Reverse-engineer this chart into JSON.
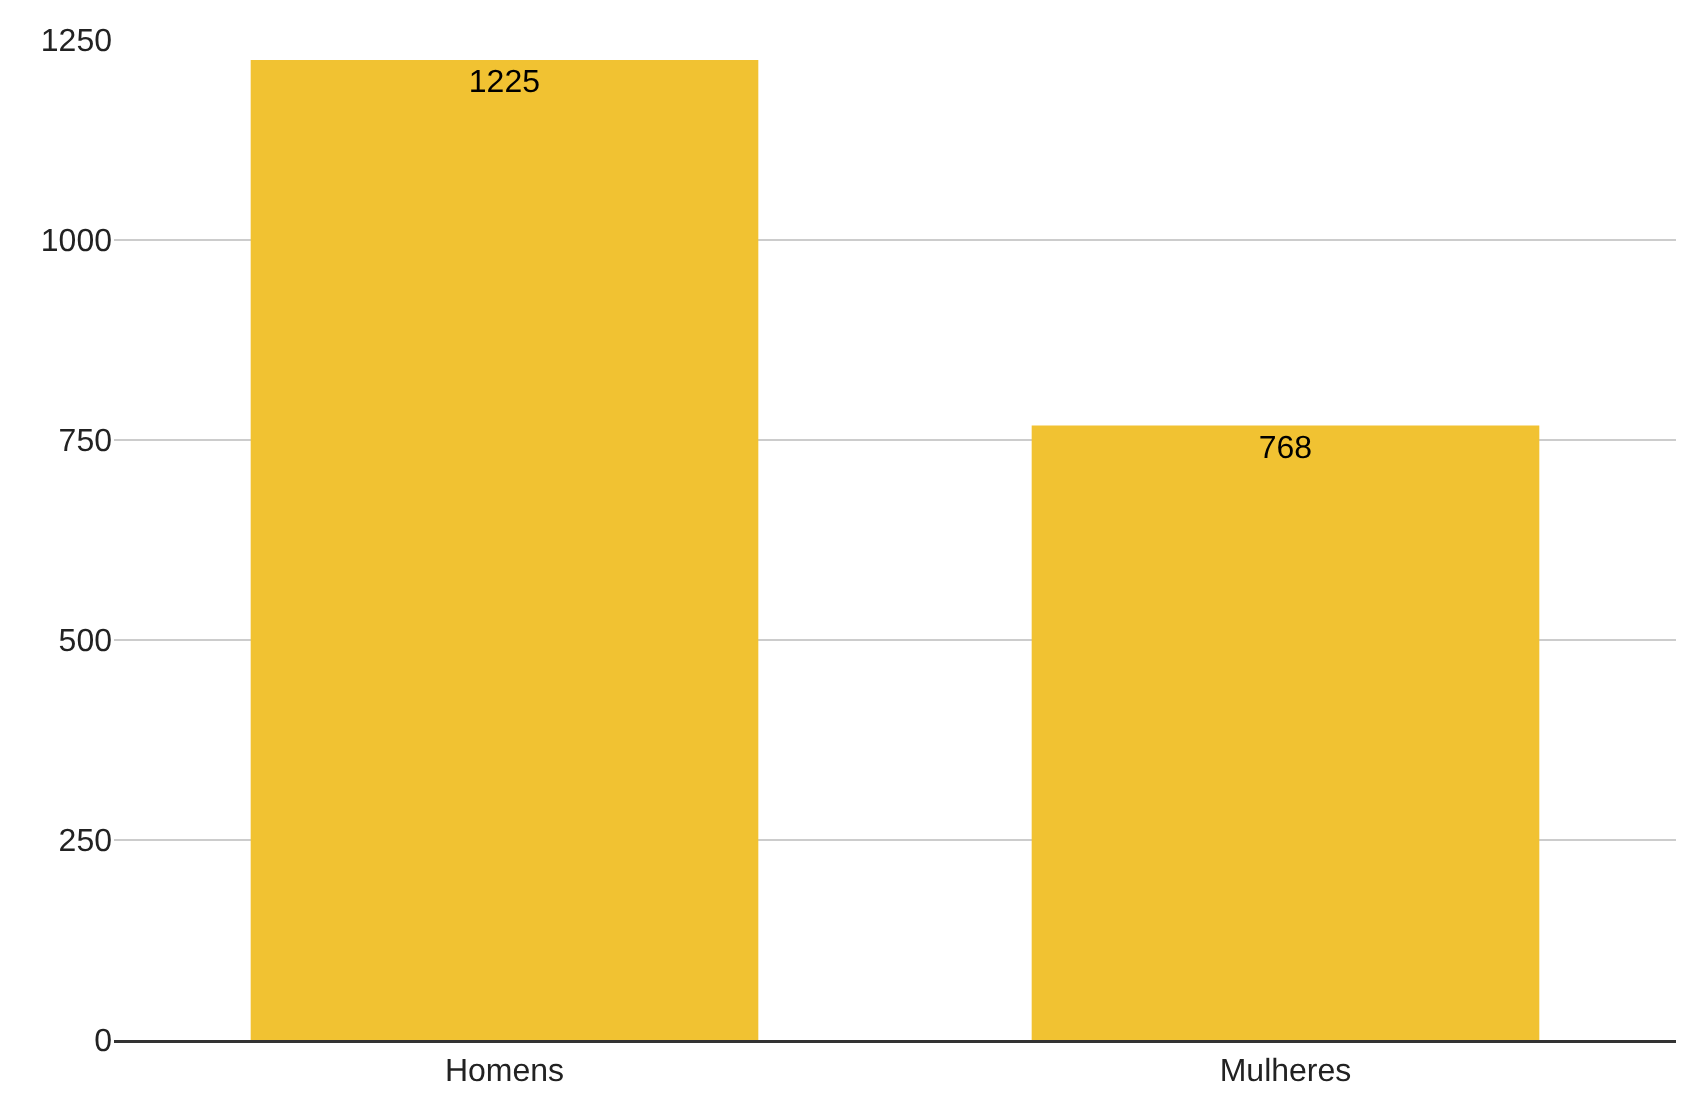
{
  "chart_data": {
    "type": "bar",
    "categories": [
      "Homens",
      "Mulheres"
    ],
    "values": [
      1225,
      768
    ],
    "color": "#f1c232",
    "ylim": [
      0,
      1250
    ],
    "yticks": [
      0,
      250,
      500,
      750,
      1000,
      1250
    ],
    "grid": "y",
    "data_labels": true
  }
}
